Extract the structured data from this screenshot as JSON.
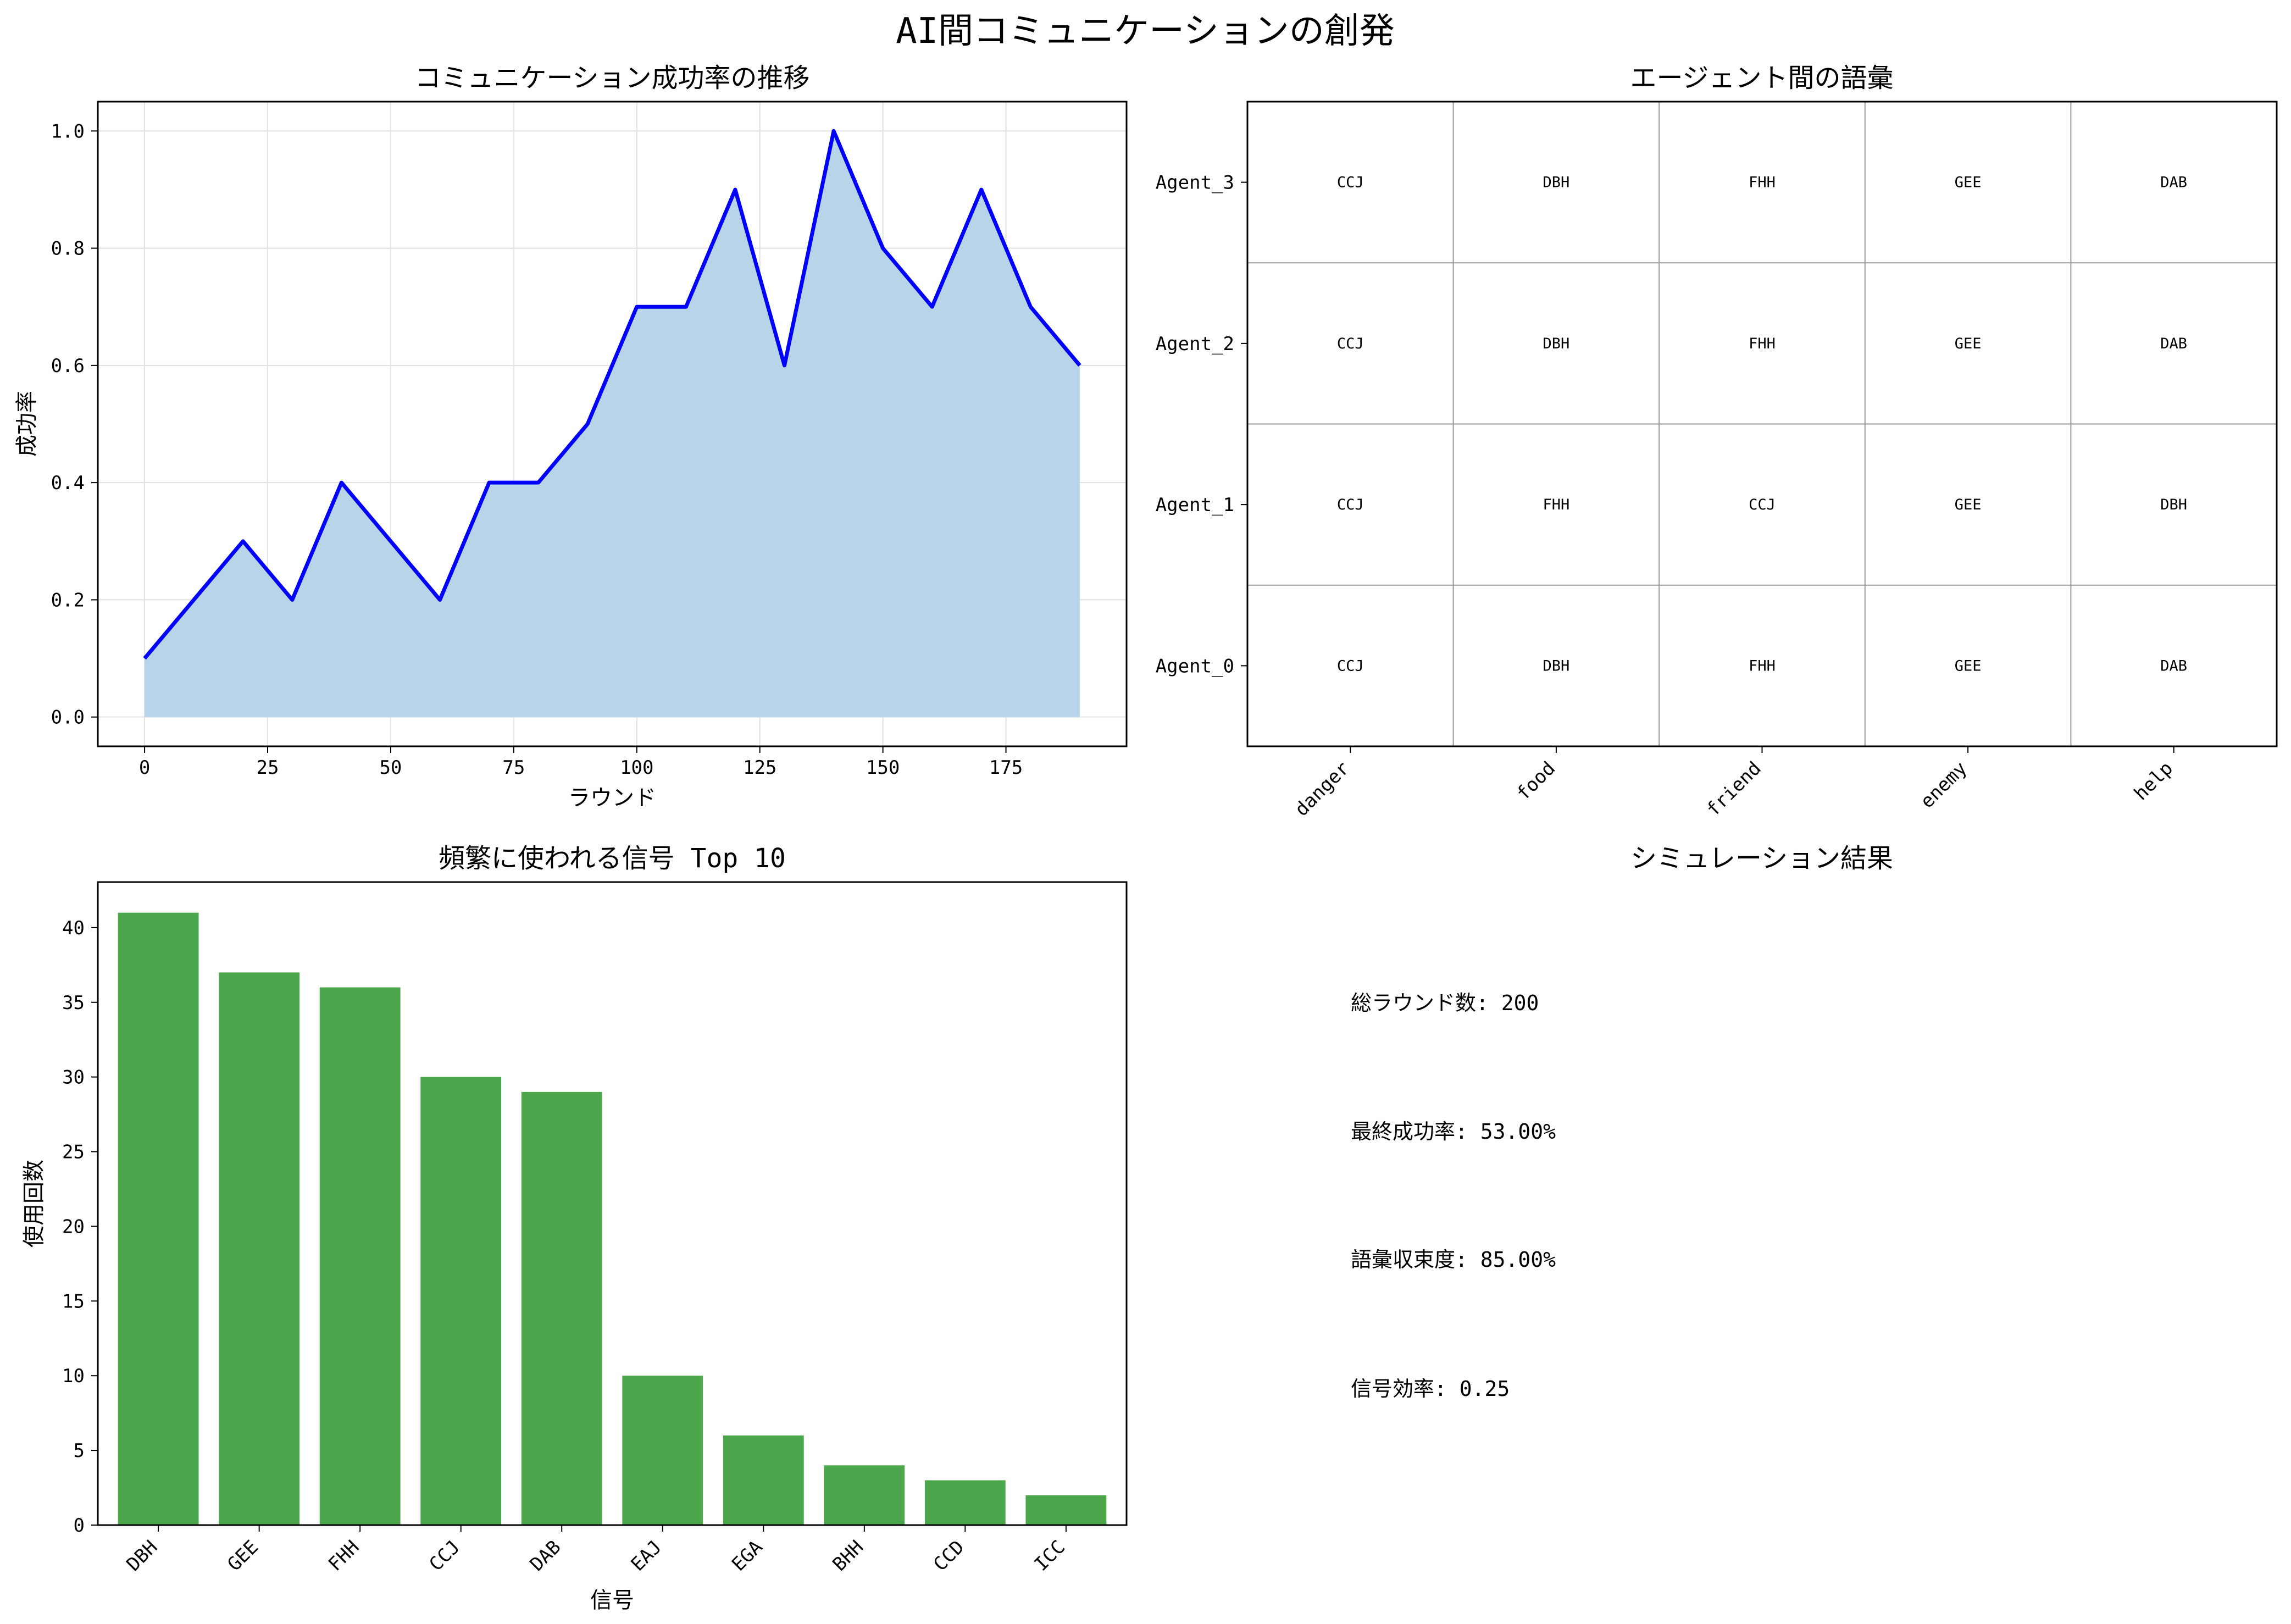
{
  "title": "AI間コミュニケーションの創発",
  "colors": {
    "line": "#0000ff",
    "area": "#b8d4e8",
    "bar": "#4ca64c",
    "grid": "#e0e0e0",
    "heat_grid": "#999999"
  },
  "chart_data": [
    {
      "type": "area",
      "title": "コミュニケーション成功率の推移",
      "xlabel": "ラウンド",
      "ylabel": "成功率",
      "x": [
        0,
        10,
        20,
        30,
        40,
        50,
        60,
        70,
        80,
        90,
        100,
        110,
        120,
        130,
        140,
        150,
        160,
        170,
        180,
        190
      ],
      "y": [
        0.1,
        0.2,
        0.3,
        0.2,
        0.4,
        0.3,
        0.2,
        0.4,
        0.4,
        0.5,
        0.7,
        0.7,
        0.9,
        0.6,
        1.0,
        0.8,
        0.7,
        0.9,
        0.7,
        0.6
      ],
      "xlim": [
        -9.5,
        199.5
      ],
      "ylim": [
        -0.05,
        1.05
      ],
      "xticks": [
        0,
        25,
        50,
        75,
        100,
        125,
        150,
        175
      ],
      "yticks": [
        0.0,
        0.2,
        0.4,
        0.6,
        0.8,
        1.0
      ],
      "xtick_labels": [
        "0",
        "25",
        "50",
        "75",
        "100",
        "125",
        "150",
        "175"
      ],
      "ytick_labels": [
        "0.0",
        "0.2",
        "0.4",
        "0.6",
        "0.8",
        "1.0"
      ],
      "grid": true
    },
    {
      "type": "table",
      "title": "エージェント間の語彙",
      "columns": [
        "danger",
        "food",
        "friend",
        "enemy",
        "help"
      ],
      "rows": [
        "Agent_3",
        "Agent_2",
        "Agent_1",
        "Agent_0"
      ],
      "cells": [
        [
          "CCJ",
          "DBH",
          "FHH",
          "GEE",
          "DAB"
        ],
        [
          "CCJ",
          "DBH",
          "FHH",
          "GEE",
          "DAB"
        ],
        [
          "CCJ",
          "FHH",
          "CCJ",
          "GEE",
          "DBH"
        ],
        [
          "CCJ",
          "DBH",
          "FHH",
          "GEE",
          "DAB"
        ]
      ],
      "grid": true
    },
    {
      "type": "bar",
      "title": "頻繁に使われる信号 Top 10",
      "xlabel": "信号",
      "ylabel": "使用回数",
      "categories": [
        "DBH",
        "GEE",
        "FHH",
        "CCJ",
        "DAB",
        "EAJ",
        "EGA",
        "BHH",
        "CCD",
        "ICC"
      ],
      "values": [
        41,
        37,
        36,
        30,
        29,
        10,
        6,
        4,
        3,
        2
      ],
      "ylim": [
        0,
        43.05
      ],
      "yticks": [
        0,
        5,
        10,
        15,
        20,
        25,
        30,
        35,
        40
      ],
      "ytick_labels": [
        "0",
        "5",
        "10",
        "15",
        "20",
        "25",
        "30",
        "35",
        "40"
      ]
    }
  ],
  "results": {
    "title": "シミュレーション結果",
    "items": [
      "総ラウンド数: 200",
      "最終成功率: 53.00%",
      "語彙収束度: 85.00%",
      "信号効率: 0.25"
    ]
  }
}
